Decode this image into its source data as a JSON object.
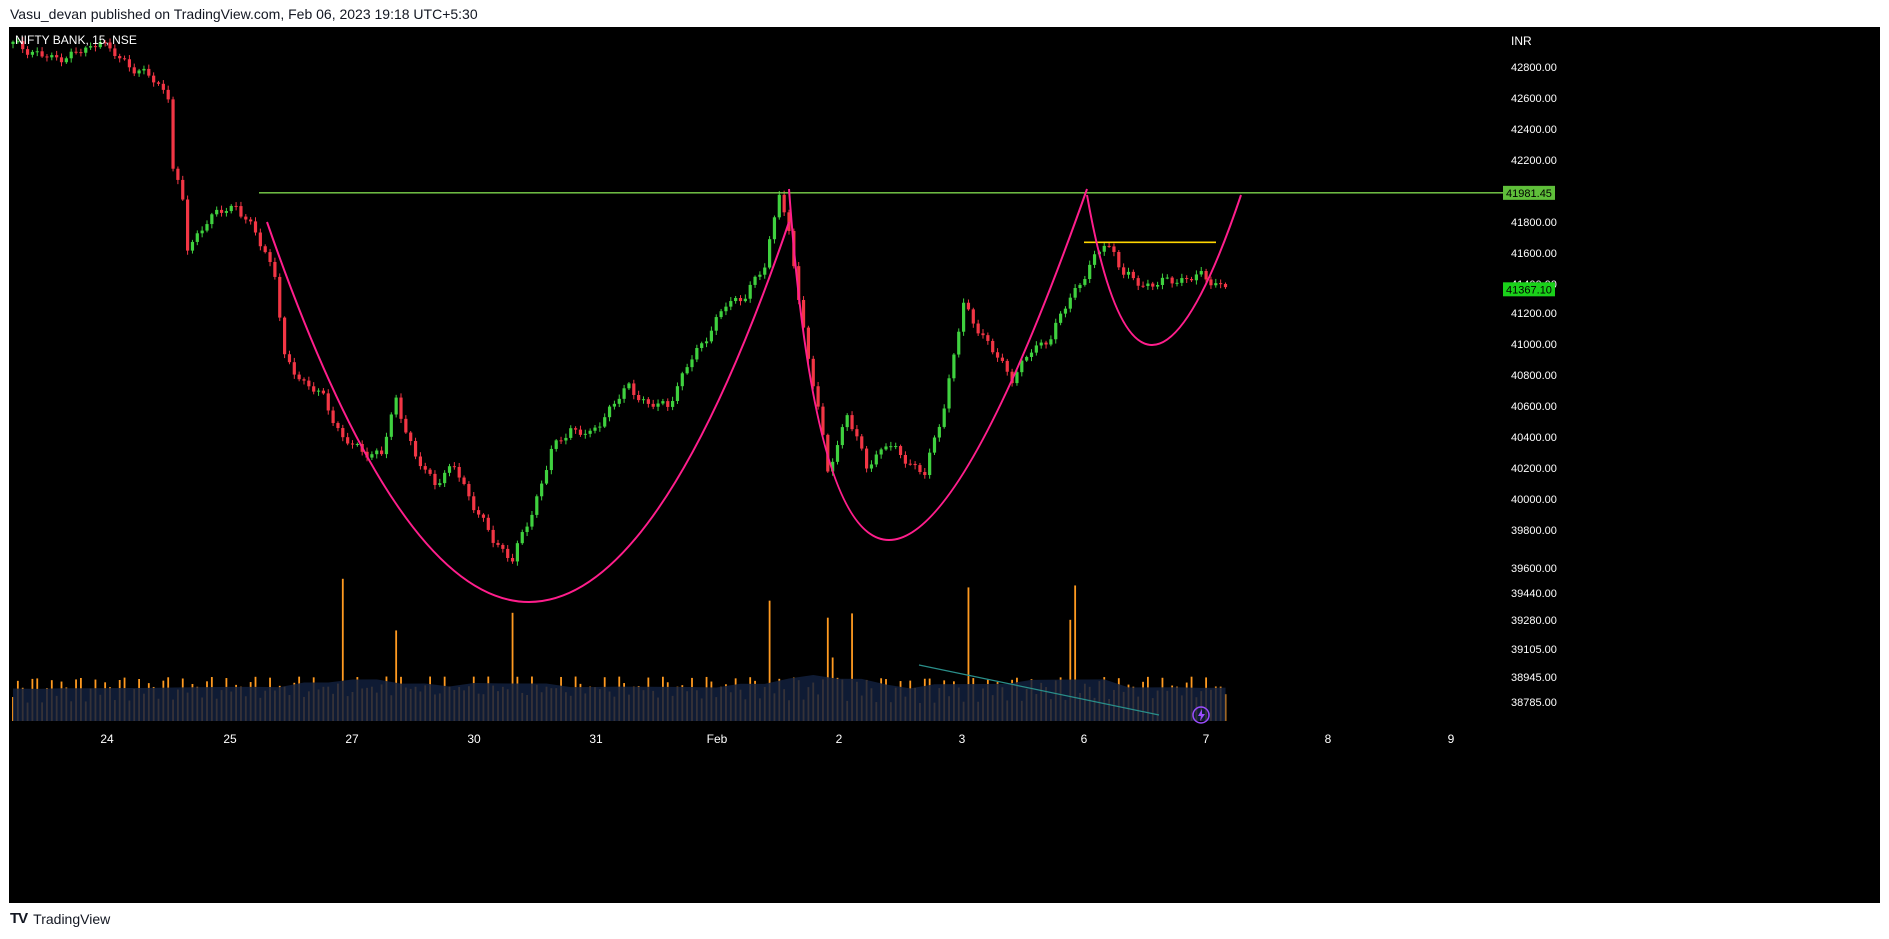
{
  "header": {
    "publisher": "Vasu_devan published on TradingView.com, Feb 06, 2023 19:18 UTC+5:30"
  },
  "footer": {
    "brand": "TradingView"
  },
  "colors": {
    "background": "#000000",
    "up": "#26a69a",
    "up_body": "#3fd13f",
    "down": "#f23645",
    "resistance": "#7bd34b",
    "handle_line": "#ffd600",
    "curve": "#ff1e8c",
    "volume": "#ff9a20",
    "volume_ma": "#14213f"
  },
  "chart_data": {
    "type": "candlestick",
    "title": "NIFTY BANK, 15, NSE",
    "currency": "INR",
    "price_axis_ticks": [
      42800,
      42600,
      42400,
      42200,
      41800,
      41600,
      41400,
      41200,
      41000,
      40800,
      40600,
      40400,
      40200,
      40000,
      39800,
      39600,
      39440,
      39280,
      39105,
      38945,
      38785
    ],
    "price_axis_tick_labels": [
      "42800.00",
      "42600.00",
      "42400.00",
      "42200.00",
      "41800.00",
      "41600.00",
      "41400.00",
      "41200.00",
      "41000.00",
      "40800.00",
      "40600.00",
      "40400.00",
      "40200.00",
      "40000.00",
      "39800.00",
      "39600.00",
      "39440.00",
      "39280.00",
      "39105.00",
      "38945.00",
      "38785.00"
    ],
    "x_axis_labels": [
      "24",
      "25",
      "27",
      "30",
      "31",
      "Feb",
      "2",
      "3",
      "6",
      "7",
      "8",
      "9"
    ],
    "resistance_level": {
      "value": 41981.45,
      "label": "41981.45"
    },
    "last_price": {
      "value": 41367.1,
      "label": "41367.10"
    },
    "handle_top": 41660,
    "cup_bottoms": [
      39440,
      39800,
      41000
    ],
    "price_path": [
      {
        "x": 0,
        "p": 42950
      },
      {
        "x": 4,
        "p": 42900
      },
      {
        "x": 8,
        "p": 42850
      },
      {
        "x": 12,
        "p": 42880
      },
      {
        "x": 16,
        "p": 42920
      },
      {
        "x": 18,
        "p": 42990
      },
      {
        "x": 20,
        "p": 42900
      },
      {
        "x": 24,
        "p": 42810
      },
      {
        "x": 28,
        "p": 42740
      },
      {
        "x": 32,
        "p": 42620
      },
      {
        "x": 33,
        "p": 42150
      },
      {
        "x": 35,
        "p": 41920
      },
      {
        "x": 36,
        "p": 41620
      },
      {
        "x": 40,
        "p": 41800
      },
      {
        "x": 44,
        "p": 41880
      },
      {
        "x": 46,
        "p": 41900
      },
      {
        "x": 48,
        "p": 41800
      },
      {
        "x": 50,
        "p": 41720
      },
      {
        "x": 52,
        "p": 41600
      },
      {
        "x": 54,
        "p": 41450
      },
      {
        "x": 56,
        "p": 40900
      },
      {
        "x": 60,
        "p": 40750
      },
      {
        "x": 64,
        "p": 40650
      },
      {
        "x": 68,
        "p": 40380
      },
      {
        "x": 72,
        "p": 40300
      },
      {
        "x": 76,
        "p": 40280
      },
      {
        "x": 79,
        "p": 40640
      },
      {
        "x": 83,
        "p": 40250
      },
      {
        "x": 87,
        "p": 40100
      },
      {
        "x": 91,
        "p": 40200
      },
      {
        "x": 95,
        "p": 39950
      },
      {
        "x": 99,
        "p": 39720
      },
      {
        "x": 103,
        "p": 39600
      },
      {
        "x": 107,
        "p": 39900
      },
      {
        "x": 111,
        "p": 40300
      },
      {
        "x": 115,
        "p": 40450
      },
      {
        "x": 119,
        "p": 40400
      },
      {
        "x": 123,
        "p": 40580
      },
      {
        "x": 127,
        "p": 40720
      },
      {
        "x": 131,
        "p": 40600
      },
      {
        "x": 135,
        "p": 40600
      },
      {
        "x": 139,
        "p": 40850
      },
      {
        "x": 143,
        "p": 41050
      },
      {
        "x": 147,
        "p": 41250
      },
      {
        "x": 151,
        "p": 41320
      },
      {
        "x": 155,
        "p": 41500
      },
      {
        "x": 158,
        "p": 42000
      },
      {
        "x": 160,
        "p": 41700
      },
      {
        "x": 162,
        "p": 41300
      },
      {
        "x": 164,
        "p": 40900
      },
      {
        "x": 166,
        "p": 40600
      },
      {
        "x": 168,
        "p": 40150
      },
      {
        "x": 172,
        "p": 40550
      },
      {
        "x": 176,
        "p": 40200
      },
      {
        "x": 180,
        "p": 40350
      },
      {
        "x": 184,
        "p": 40250
      },
      {
        "x": 188,
        "p": 40150
      },
      {
        "x": 192,
        "p": 40600
      },
      {
        "x": 196,
        "p": 41250
      },
      {
        "x": 199,
        "p": 41100
      },
      {
        "x": 202,
        "p": 40950
      },
      {
        "x": 206,
        "p": 40780
      },
      {
        "x": 210,
        "p": 40950
      },
      {
        "x": 214,
        "p": 41050
      },
      {
        "x": 218,
        "p": 41300
      },
      {
        "x": 221,
        "p": 41450
      },
      {
        "x": 225,
        "p": 41650
      },
      {
        "x": 227,
        "p": 41600
      },
      {
        "x": 229,
        "p": 41450
      },
      {
        "x": 233,
        "p": 41380
      },
      {
        "x": 237,
        "p": 41400
      },
      {
        "x": 241,
        "p": 41420
      },
      {
        "x": 245,
        "p": 41440
      },
      {
        "x": 249,
        "p": 41380
      }
    ]
  }
}
